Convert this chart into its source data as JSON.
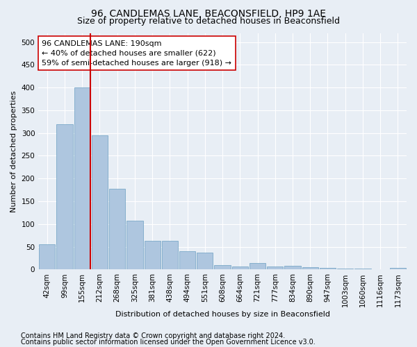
{
  "title": "96, CANDLEMAS LANE, BEACONSFIELD, HP9 1AE",
  "subtitle": "Size of property relative to detached houses in Beaconsfield",
  "xlabel": "Distribution of detached houses by size in Beaconsfield",
  "ylabel": "Number of detached properties",
  "categories": [
    "42sqm",
    "99sqm",
    "155sqm",
    "212sqm",
    "268sqm",
    "325sqm",
    "381sqm",
    "438sqm",
    "494sqm",
    "551sqm",
    "608sqm",
    "664sqm",
    "721sqm",
    "777sqm",
    "834sqm",
    "890sqm",
    "947sqm",
    "1003sqm",
    "1060sqm",
    "1116sqm",
    "1173sqm"
  ],
  "values": [
    55,
    320,
    400,
    295,
    178,
    107,
    63,
    63,
    40,
    37,
    10,
    7,
    14,
    7,
    8,
    5,
    3,
    2,
    2,
    1,
    4
  ],
  "bar_color": "#aec6df",
  "bar_edge_color": "#6b9fc2",
  "vline_color": "#cc0000",
  "vline_x_index": 2,
  "annotation_text": "96 CANDLEMAS LANE: 190sqm\n← 40% of detached houses are smaller (622)\n59% of semi-detached houses are larger (918) →",
  "annotation_box_facecolor": "#ffffff",
  "annotation_box_edgecolor": "#cc0000",
  "ylim": [
    0,
    520
  ],
  "yticks": [
    0,
    50,
    100,
    150,
    200,
    250,
    300,
    350,
    400,
    450,
    500
  ],
  "footer1": "Contains HM Land Registry data © Crown copyright and database right 2024.",
  "footer2": "Contains public sector information licensed under the Open Government Licence v3.0.",
  "background_color": "#e8eef5",
  "grid_color": "#ffffff",
  "title_fontsize": 10,
  "subtitle_fontsize": 9,
  "axis_label_fontsize": 8,
  "tick_fontsize": 7.5,
  "annotation_fontsize": 8,
  "footer_fontsize": 7
}
